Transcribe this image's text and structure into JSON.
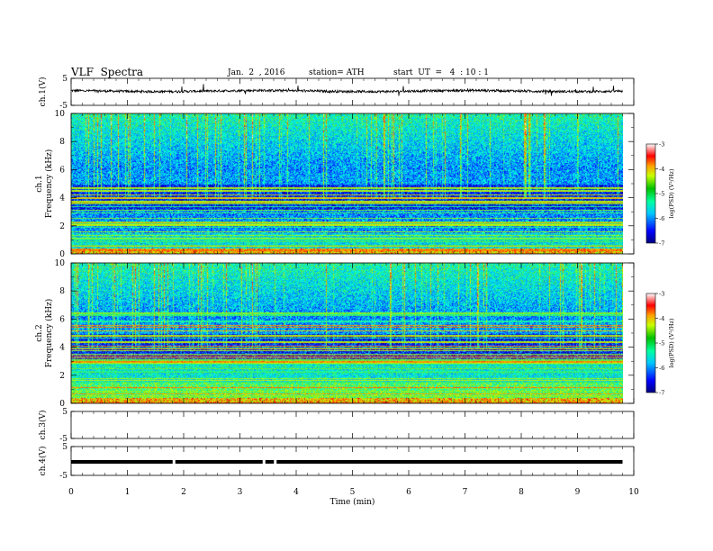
{
  "header": {
    "title": "VLF  Spectra",
    "date": "Jan.  2  , 2016",
    "station": "station= ATH",
    "start": "start  UT  =   4  : 10 : 1"
  },
  "chart_data": [
    {
      "type": "line",
      "panel": "ch1",
      "ylabel": "ch.1(V)",
      "ylim": [
        -5,
        5
      ],
      "yticks": [
        "5",
        "-5"
      ],
      "trace": "noisy waveform around +0.3 V with occasional spikes"
    },
    {
      "type": "heatmap",
      "panel": "spec1",
      "ylabel": [
        "ch.1",
        "Frequency  (kHz)"
      ],
      "ylim": [
        0,
        10
      ],
      "yticks": [
        "0",
        "2",
        "4",
        "6",
        "8",
        "10"
      ],
      "colorbar": {
        "label": "log(PSD) (V²/Hz)",
        "range": [
          -7,
          -3
        ],
        "ticks": [
          "-3",
          "-4",
          "-5",
          "-6",
          "-7"
        ]
      }
    },
    {
      "type": "heatmap",
      "panel": "spec2",
      "ylabel": [
        "ch.2",
        "Frequency  (kHz)"
      ],
      "ylim": [
        0,
        10
      ],
      "yticks": [
        "0",
        "2",
        "4",
        "6",
        "8",
        "10"
      ],
      "colorbar": {
        "label": "log(PSD) (V²/Hz)",
        "range": [
          -7,
          -3
        ],
        "ticks": [
          "-3",
          "-4",
          "-5",
          "-6",
          "-7"
        ]
      }
    },
    {
      "type": "line",
      "panel": "ch3",
      "ylabel": "ch.3(V)",
      "ylim": [
        -5,
        5
      ],
      "yticks": [
        "5",
        "-5"
      ],
      "trace": "no data"
    },
    {
      "type": "line",
      "panel": "ch4",
      "ylabel": "ch.4(V)",
      "ylim": [
        -5,
        5
      ],
      "yticks": [
        "5",
        "-5"
      ],
      "trace": "flat line near 0 V with brief gaps",
      "gaps_min": [
        1.82,
        3.42,
        3.62
      ]
    }
  ],
  "xaxis": {
    "label": "Time  (min)",
    "xlim": [
      0,
      10
    ],
    "ticks": [
      "0",
      "1",
      "2",
      "3",
      "4",
      "5",
      "6",
      "7",
      "8",
      "9",
      "10"
    ],
    "data_end": 9.8
  },
  "colors": {
    "frame": "#000000",
    "colormap": [
      "#000080",
      "#0000ff",
      "#00a0ff",
      "#00ffff",
      "#40ff80",
      "#00c000",
      "#ffff00",
      "#ff8000",
      "#ff0000",
      "#ffffff"
    ]
  }
}
